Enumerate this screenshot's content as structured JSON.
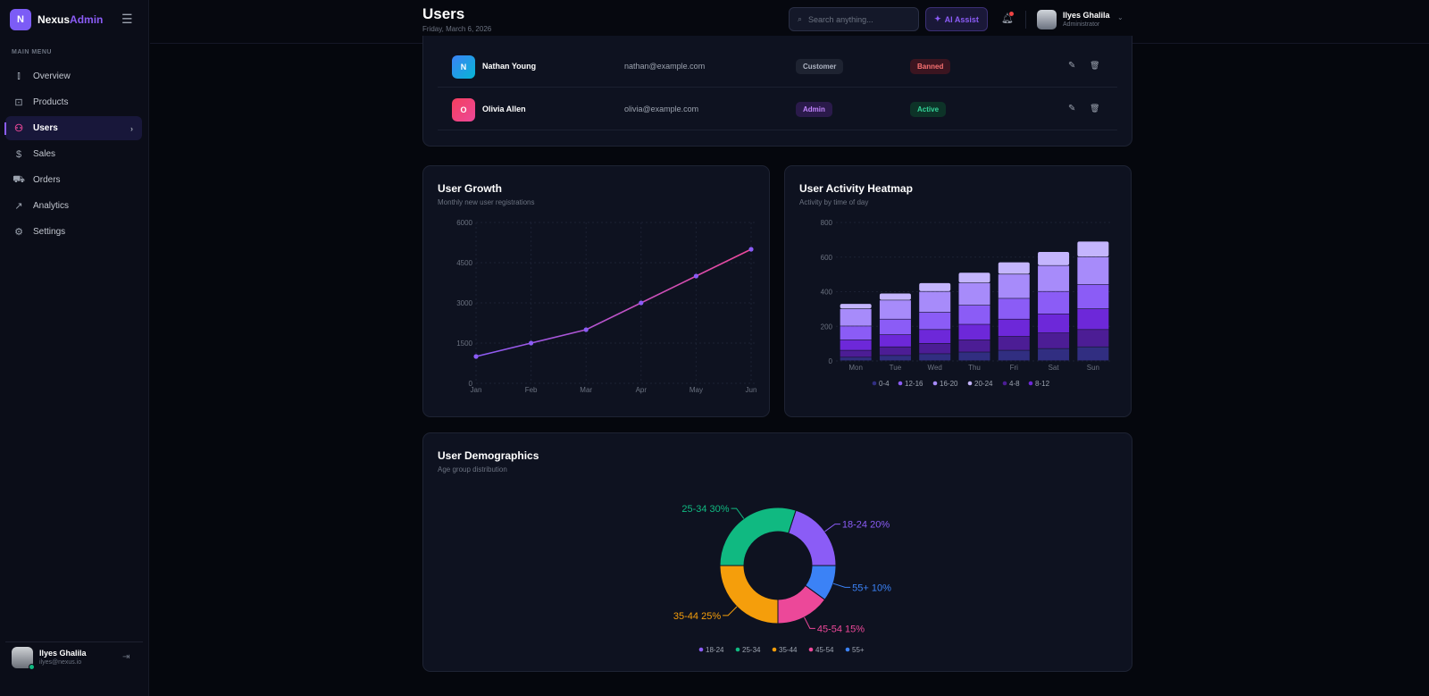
{
  "brand": {
    "logo_letter": "N",
    "name_a": "Nexus",
    "name_b": "Admin"
  },
  "sidebar": {
    "menu_heading": "MAIN MENU",
    "items": [
      {
        "label": "Overview",
        "icon": "bar-chart-icon",
        "glyph": "⫾"
      },
      {
        "label": "Products",
        "icon": "shopping-bag-icon",
        "glyph": "⊡"
      },
      {
        "label": "Users",
        "icon": "users-icon",
        "glyph": "⚇",
        "active": true
      },
      {
        "label": "Sales",
        "icon": "dollar-icon",
        "glyph": "$"
      },
      {
        "label": "Orders",
        "icon": "cart-icon",
        "glyph": "⛟"
      },
      {
        "label": "Analytics",
        "icon": "trending-up-icon",
        "glyph": "↗"
      },
      {
        "label": "Settings",
        "icon": "gear-icon",
        "glyph": "⚙"
      }
    ],
    "user": {
      "name": "Ilyes Ghalila",
      "email": "ilyes@nexus.io"
    }
  },
  "header": {
    "title": "Users",
    "date": "Friday, March 6, 2026",
    "search_placeholder": "Search anything...",
    "ai_label": "AI Assist",
    "user_name": "Ilyes Ghalila",
    "user_role": "Administrator"
  },
  "users": [
    {
      "initial": "N",
      "name": "Nathan Young",
      "email": "nathan@example.com",
      "role": "Customer",
      "status": "Banned"
    },
    {
      "initial": "O",
      "name": "Olivia Allen",
      "email": "olivia@example.com",
      "role": "Admin",
      "status": "Active"
    }
  ],
  "chart_data": [
    {
      "type": "line",
      "title": "User Growth",
      "subtitle": "Monthly new user registrations",
      "categories": [
        "Jan",
        "Feb",
        "Mar",
        "Apr",
        "May",
        "Jun"
      ],
      "values": [
        1000,
        1500,
        2000,
        3000,
        4000,
        5000
      ],
      "ylim": [
        0,
        6000
      ],
      "yticks": [
        "0",
        "1500",
        "3000",
        "4500",
        "6000"
      ],
      "grid": true
    },
    {
      "type": "bar",
      "stacked": true,
      "title": "User Activity Heatmap",
      "subtitle": "Activity by time of day",
      "categories": [
        "Mon",
        "Tue",
        "Wed",
        "Thu",
        "Fri",
        "Sat",
        "Sun"
      ],
      "ylim": [
        0,
        800
      ],
      "yticks": [
        "0",
        "200",
        "400",
        "600",
        "800"
      ],
      "series": [
        {
          "name": "0-4",
          "color": "#312e81",
          "values": [
            20,
            30,
            40,
            50,
            60,
            70,
            80
          ]
        },
        {
          "name": "4-8",
          "color": "#4c1d95",
          "values": [
            40,
            50,
            60,
            70,
            80,
            90,
            100
          ]
        },
        {
          "name": "8-12",
          "color": "#6d28d9",
          "values": [
            60,
            70,
            80,
            90,
            100,
            110,
            120
          ]
        },
        {
          "name": "12-16",
          "color": "#8b5cf6",
          "values": [
            80,
            90,
            100,
            110,
            120,
            130,
            140
          ]
        },
        {
          "name": "16-20",
          "color": "#a78bfa",
          "values": [
            100,
            110,
            120,
            130,
            140,
            150,
            160
          ]
        },
        {
          "name": "20-24",
          "color": "#c4b5fd",
          "values": [
            30,
            40,
            50,
            60,
            70,
            80,
            90
          ]
        }
      ],
      "legend": [
        "0-4",
        "12-16",
        "16-20",
        "20-24",
        "4-8",
        "8-12"
      ],
      "legend_placement": "bottom"
    },
    {
      "type": "pie",
      "donut": true,
      "title": "User Demographics",
      "subtitle": "Age group distribution",
      "categories": [
        "18-24",
        "25-34",
        "35-44",
        "45-54",
        "55+"
      ],
      "values": [
        20,
        30,
        25,
        15,
        10
      ],
      "colors": [
        "#8b5cf6",
        "#10b981",
        "#f59e0b",
        "#ec4899",
        "#3b82f6"
      ],
      "labels": [
        "18-24 20%",
        "25-34 30%",
        "35-44 25%",
        "45-54 15%",
        "55+ 10%"
      ],
      "legend_placement": "bottom"
    }
  ]
}
